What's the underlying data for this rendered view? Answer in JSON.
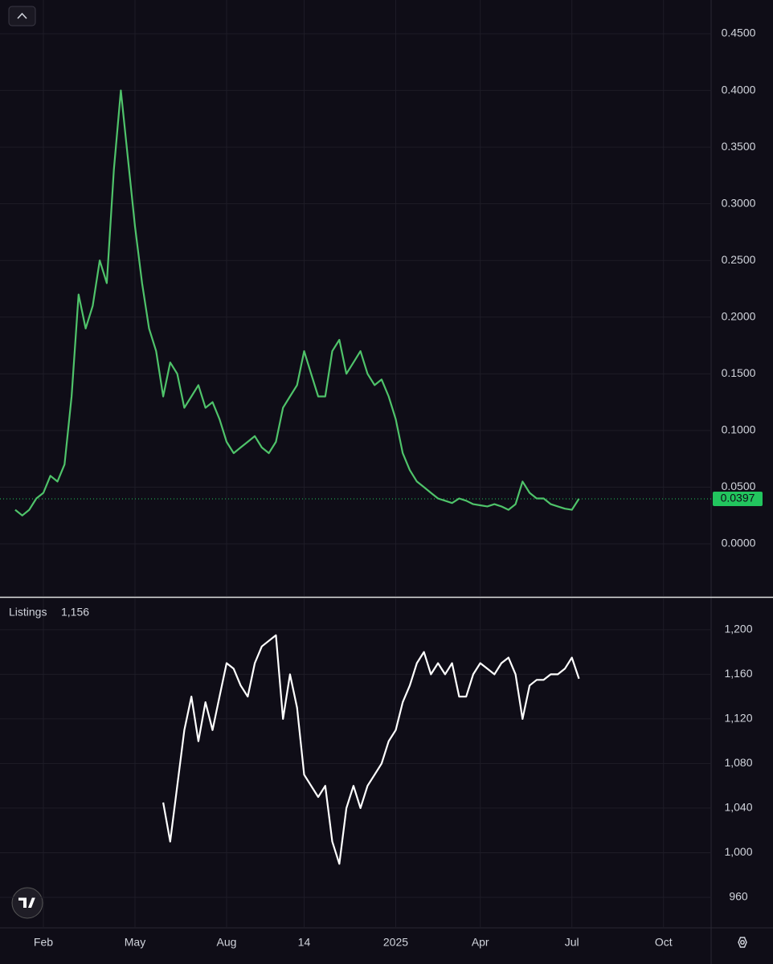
{
  "chart_data": [
    {
      "type": "line",
      "series": [
        {
          "name": null,
          "color": "#4fc36a",
          "values": [
            0.03,
            0.025,
            0.03,
            0.04,
            0.045,
            0.06,
            0.055,
            0.07,
            0.13,
            0.22,
            0.19,
            0.21,
            0.25,
            0.23,
            0.33,
            0.4,
            0.34,
            0.28,
            0.23,
            0.19,
            0.17,
            0.13,
            0.16,
            0.15,
            0.12,
            0.13,
            0.14,
            0.12,
            0.125,
            0.11,
            0.09,
            0.08,
            0.085,
            0.09,
            0.095,
            0.085,
            0.08,
            0.09,
            0.12,
            0.13,
            0.14,
            0.17,
            0.15,
            0.13,
            0.13,
            0.17,
            0.18,
            0.15,
            0.16,
            0.17,
            0.15,
            0.14,
            0.145,
            0.13,
            0.11,
            0.08,
            0.065,
            0.055,
            0.05,
            0.045,
            0.04,
            0.038,
            0.036,
            0.04,
            0.038,
            0.035,
            0.034,
            0.033,
            0.035,
            0.033,
            0.03,
            0.035,
            0.055,
            0.045,
            0.04,
            0.04,
            0.035,
            0.033,
            0.031,
            0.03,
            0.0397,
            null,
            null,
            null,
            null,
            null,
            null,
            null,
            null,
            null,
            null,
            null,
            null
          ]
        }
      ],
      "ylim": [
        -0.0461,
        0.4798
      ],
      "yticks": [
        {
          "value": 0,
          "label": "0.0000"
        },
        {
          "value": 0.05,
          "label": "0.0500"
        },
        {
          "value": 0.1,
          "label": "0.1000"
        },
        {
          "value": 0.15,
          "label": "0.1500"
        },
        {
          "value": 0.2,
          "label": "0.2000"
        },
        {
          "value": 0.25,
          "label": "0.2500"
        },
        {
          "value": 0.3,
          "label": "0.3000"
        },
        {
          "value": 0.35,
          "label": "0.3500"
        },
        {
          "value": 0.4,
          "label": "0.4000"
        },
        {
          "value": 0.45,
          "label": "0.4500"
        }
      ],
      "price_marker": {
        "value": 0.0397,
        "label": "0.0397",
        "color": "#22c55e"
      },
      "grid": true
    },
    {
      "type": "line",
      "categories": [
        null,
        null,
        null,
        null,
        "Feb",
        null,
        null,
        null,
        null,
        null,
        null,
        null,
        null,
        null,
        null,
        null,
        null,
        "May",
        null,
        null,
        null,
        null,
        null,
        null,
        null,
        null,
        null,
        null,
        null,
        null,
        "Aug",
        null,
        null,
        null,
        null,
        null,
        null,
        null,
        null,
        null,
        null,
        "14",
        null,
        null,
        null,
        null,
        null,
        null,
        null,
        null,
        null,
        null,
        null,
        null,
        "2025",
        null,
        null,
        null,
        null,
        null,
        null,
        null,
        null,
        null,
        null,
        null,
        "Apr",
        null,
        null,
        null,
        null,
        null,
        null,
        null,
        null,
        null,
        null,
        null,
        null,
        "Jul",
        null,
        null,
        null,
        null,
        null,
        null,
        null,
        null,
        null,
        null,
        null,
        null,
        "Oct"
      ],
      "series": [
        {
          "name": "Listings",
          "last_label": "1,156",
          "color": "#ffffff",
          "values": [
            null,
            null,
            null,
            null,
            null,
            null,
            null,
            null,
            null,
            null,
            null,
            null,
            null,
            null,
            null,
            null,
            null,
            null,
            null,
            null,
            null,
            1045,
            1010,
            1060,
            1110,
            1140,
            1100,
            1135,
            1110,
            1140,
            1170,
            1165,
            1150,
            1140,
            1170,
            1185,
            1190,
            1195,
            1120,
            1160,
            1130,
            1070,
            1060,
            1050,
            1060,
            1010,
            990,
            1040,
            1060,
            1040,
            1060,
            1070,
            1080,
            1100,
            1110,
            1135,
            1150,
            1170,
            1180,
            1160,
            1170,
            1160,
            1170,
            1140,
            1140,
            1160,
            1170,
            1165,
            1160,
            1170,
            1175,
            1160,
            1120,
            1150,
            1155,
            1155,
            1160,
            1160,
            1165,
            1175,
            1156,
            null,
            null,
            null,
            null,
            null,
            null,
            null,
            null,
            null,
            null,
            null,
            null
          ]
        }
      ],
      "ylim": [
        932.6,
        1228
      ],
      "yticks": [
        {
          "value": 960,
          "label": "960"
        },
        {
          "value": 1000,
          "label": "1,000"
        },
        {
          "value": 1040,
          "label": "1,040"
        },
        {
          "value": 1080,
          "label": "1,080"
        },
        {
          "value": 1120,
          "label": "1,120"
        },
        {
          "value": 1160,
          "label": "1,160"
        },
        {
          "value": 1200,
          "label": "1,200"
        }
      ],
      "grid": true
    }
  ]
}
